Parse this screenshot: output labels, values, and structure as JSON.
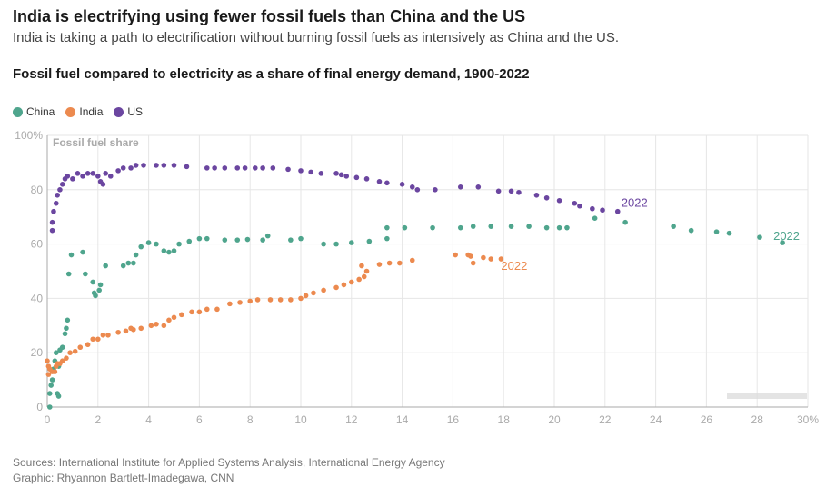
{
  "header": {
    "title": "India is electrifying using fewer fossil fuels than China and the US",
    "subtitle": "India is taking a path to electrification without burning fossil fuels as intensively as China and the US."
  },
  "footer": {
    "sources": "Sources: International Institute for Applied Systems Analysis, International Energy Agency",
    "graphic": "Graphic: Rhyannon Bartlett-Imadegawa, CNN"
  },
  "chart_data": {
    "type": "scatter",
    "title": "Fossil fuel compared to electricity as a share of final energy demand, 1900-2022",
    "ylabel": "Fossil fuel share",
    "xlim": [
      0,
      30
    ],
    "ylim": [
      0,
      100
    ],
    "x_ticks": [
      "0",
      "2",
      "4",
      "6",
      "8",
      "10",
      "12",
      "14",
      "16",
      "18",
      "20",
      "22",
      "24",
      "26",
      "28",
      "30%"
    ],
    "y_ticks": [
      "0",
      "20",
      "40",
      "60",
      "80",
      "100%"
    ],
    "grid": true,
    "legend_position": "top-left",
    "series": [
      {
        "name": "China",
        "color": "#4fa58d",
        "end_label": "2022",
        "points": [
          [
            0.1,
            0
          ],
          [
            0.1,
            5
          ],
          [
            0.15,
            8
          ],
          [
            0.2,
            10
          ],
          [
            0.25,
            14
          ],
          [
            0.3,
            17
          ],
          [
            0.35,
            20
          ],
          [
            0.4,
            5
          ],
          [
            0.45,
            4
          ],
          [
            0.45,
            15
          ],
          [
            0.5,
            21
          ],
          [
            0.6,
            22
          ],
          [
            0.7,
            27
          ],
          [
            0.75,
            29
          ],
          [
            0.8,
            32
          ],
          [
            0.85,
            49
          ],
          [
            0.95,
            56
          ],
          [
            1.4,
            57
          ],
          [
            1.5,
            49
          ],
          [
            1.8,
            46
          ],
          [
            1.85,
            42
          ],
          [
            1.9,
            41
          ],
          [
            2.05,
            43
          ],
          [
            2.1,
            45
          ],
          [
            2.3,
            52
          ],
          [
            3.0,
            52
          ],
          [
            3.2,
            53
          ],
          [
            3.4,
            53
          ],
          [
            3.5,
            56
          ],
          [
            3.7,
            59
          ],
          [
            4.0,
            60.5
          ],
          [
            4.3,
            60
          ],
          [
            4.6,
            57.5
          ],
          [
            4.8,
            57
          ],
          [
            5.0,
            57.5
          ],
          [
            5.2,
            60
          ],
          [
            5.6,
            61
          ],
          [
            6.0,
            62
          ],
          [
            6.3,
            62
          ],
          [
            7.0,
            61.5
          ],
          [
            7.5,
            61.5
          ],
          [
            7.9,
            61.7
          ],
          [
            8.5,
            61.5
          ],
          [
            8.7,
            63
          ],
          [
            9.6,
            61.5
          ],
          [
            10.0,
            62
          ],
          [
            10.9,
            60
          ],
          [
            11.4,
            60
          ],
          [
            12.0,
            60.5
          ],
          [
            12.7,
            61
          ],
          [
            13.4,
            62
          ],
          [
            13.4,
            66
          ],
          [
            14.1,
            66
          ],
          [
            15.2,
            66
          ],
          [
            16.3,
            66
          ],
          [
            16.8,
            66.5
          ],
          [
            17.5,
            66.5
          ],
          [
            18.3,
            66.5
          ],
          [
            19.0,
            66.5
          ],
          [
            19.7,
            66
          ],
          [
            20.2,
            66
          ],
          [
            20.5,
            66
          ],
          [
            21.6,
            69.5
          ],
          [
            22.8,
            68
          ],
          [
            24.7,
            66.5
          ],
          [
            25.4,
            65
          ],
          [
            26.4,
            64.5
          ],
          [
            26.9,
            64
          ],
          [
            28.1,
            62.5
          ],
          [
            29.0,
            60.5
          ]
        ]
      },
      {
        "name": "India",
        "color": "#ec8a4f",
        "end_label": "2022",
        "points": [
          [
            0,
            17
          ],
          [
            0.05,
            15
          ],
          [
            0.05,
            12
          ],
          [
            0.1,
            14
          ],
          [
            0.2,
            13
          ],
          [
            0.3,
            13
          ],
          [
            0.35,
            15
          ],
          [
            0.4,
            16
          ],
          [
            0.5,
            16
          ],
          [
            0.6,
            17
          ],
          [
            0.75,
            18
          ],
          [
            0.9,
            20
          ],
          [
            1.1,
            20.5
          ],
          [
            1.3,
            22
          ],
          [
            1.6,
            23
          ],
          [
            1.8,
            25
          ],
          [
            2.0,
            25
          ],
          [
            2.2,
            26.5
          ],
          [
            2.4,
            26.5
          ],
          [
            2.8,
            27.5
          ],
          [
            3.1,
            28
          ],
          [
            3.3,
            29
          ],
          [
            3.4,
            28.5
          ],
          [
            3.7,
            29
          ],
          [
            4.1,
            30
          ],
          [
            4.3,
            30.5
          ],
          [
            4.6,
            30
          ],
          [
            4.8,
            32
          ],
          [
            5.0,
            33
          ],
          [
            5.3,
            34
          ],
          [
            5.7,
            35
          ],
          [
            6.0,
            35
          ],
          [
            6.3,
            36
          ],
          [
            6.7,
            36
          ],
          [
            7.2,
            38
          ],
          [
            7.6,
            38.5
          ],
          [
            8.0,
            39
          ],
          [
            8.3,
            39.5
          ],
          [
            8.8,
            39.5
          ],
          [
            9.2,
            39.5
          ],
          [
            9.6,
            39.5
          ],
          [
            10.0,
            40
          ],
          [
            10.2,
            41
          ],
          [
            10.5,
            42
          ],
          [
            10.9,
            43
          ],
          [
            11.4,
            44
          ],
          [
            11.7,
            45
          ],
          [
            12.0,
            46
          ],
          [
            12.3,
            47
          ],
          [
            12.4,
            52
          ],
          [
            12.5,
            48
          ],
          [
            12.6,
            50
          ],
          [
            13.1,
            52.5
          ],
          [
            13.5,
            53
          ],
          [
            13.9,
            53
          ],
          [
            14.4,
            54
          ],
          [
            16.1,
            56
          ],
          [
            16.6,
            56
          ],
          [
            16.7,
            55.5
          ],
          [
            16.8,
            53
          ],
          [
            17.2,
            55
          ],
          [
            17.5,
            54.5
          ],
          [
            17.9,
            54.5
          ]
        ]
      },
      {
        "name": "US",
        "color": "#6b46a0",
        "end_label": "2022",
        "points": [
          [
            0.2,
            65
          ],
          [
            0.2,
            68
          ],
          [
            0.25,
            72
          ],
          [
            0.35,
            75
          ],
          [
            0.4,
            78
          ],
          [
            0.5,
            80
          ],
          [
            0.6,
            82
          ],
          [
            0.7,
            84
          ],
          [
            0.8,
            85
          ],
          [
            1.0,
            84
          ],
          [
            1.2,
            86
          ],
          [
            1.4,
            85
          ],
          [
            1.6,
            86
          ],
          [
            1.8,
            86
          ],
          [
            2.0,
            85
          ],
          [
            2.1,
            83
          ],
          [
            2.2,
            82
          ],
          [
            2.3,
            86
          ],
          [
            2.5,
            85
          ],
          [
            2.8,
            87
          ],
          [
            3.0,
            88
          ],
          [
            3.3,
            88
          ],
          [
            3.5,
            89
          ],
          [
            3.8,
            89
          ],
          [
            4.3,
            89
          ],
          [
            4.6,
            89
          ],
          [
            5.0,
            89
          ],
          [
            5.5,
            88.5
          ],
          [
            6.3,
            88
          ],
          [
            6.6,
            88
          ],
          [
            7.0,
            88
          ],
          [
            7.5,
            88
          ],
          [
            7.8,
            88
          ],
          [
            8.2,
            88
          ],
          [
            8.5,
            88
          ],
          [
            8.9,
            88
          ],
          [
            9.5,
            87.5
          ],
          [
            10.0,
            87
          ],
          [
            10.4,
            86.5
          ],
          [
            10.8,
            86
          ],
          [
            11.4,
            86
          ],
          [
            11.6,
            85.5
          ],
          [
            11.8,
            85
          ],
          [
            12.2,
            84.5
          ],
          [
            12.6,
            84
          ],
          [
            13.1,
            83
          ],
          [
            13.4,
            82.5
          ],
          [
            14.0,
            82
          ],
          [
            14.4,
            81
          ],
          [
            14.6,
            80
          ],
          [
            15.3,
            80
          ],
          [
            16.3,
            81
          ],
          [
            17.0,
            81
          ],
          [
            17.8,
            79.5
          ],
          [
            18.3,
            79.5
          ],
          [
            18.6,
            79
          ],
          [
            19.3,
            78
          ],
          [
            19.7,
            77
          ],
          [
            20.2,
            76
          ],
          [
            20.8,
            75
          ],
          [
            21.0,
            74
          ],
          [
            21.5,
            73
          ],
          [
            21.9,
            72.5
          ],
          [
            22.5,
            72
          ]
        ]
      }
    ]
  }
}
